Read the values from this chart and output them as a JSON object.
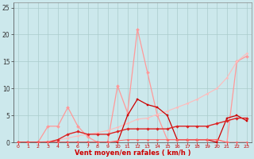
{
  "xlabel": "Vent moyen/en rafales ( km/h )",
  "bg_color": "#cce8ec",
  "grid_color": "#aacccc",
  "xlim": [
    -0.5,
    23.5
  ],
  "ylim": [
    0,
    26
  ],
  "yticks": [
    0,
    5,
    10,
    15,
    20,
    25
  ],
  "xticks": [
    0,
    1,
    2,
    3,
    4,
    5,
    6,
    7,
    8,
    9,
    10,
    11,
    12,
    13,
    14,
    15,
    16,
    17,
    18,
    19,
    20,
    21,
    22,
    23
  ],
  "series": [
    {
      "x": [
        0,
        1,
        2,
        3,
        4,
        5,
        6,
        7,
        8,
        9,
        10,
        11,
        12,
        13,
        14,
        15,
        16,
        17,
        18,
        19,
        20,
        21,
        22,
        23
      ],
      "y": [
        0,
        0,
        0,
        3,
        3,
        6.5,
        3,
        1,
        0,
        0,
        10.5,
        5.5,
        21,
        13,
        5,
        0.5,
        0.5,
        0.5,
        0.5,
        0.5,
        0.5,
        0,
        15,
        16
      ],
      "color": "#ff9999",
      "lw": 0.9,
      "marker": "D",
      "ms": 2.0
    },
    {
      "x": [
        0,
        1,
        2,
        3,
        4,
        5,
        6,
        7,
        8,
        9,
        10,
        11,
        12,
        13,
        14,
        15,
        16,
        17,
        18,
        19,
        20,
        21,
        22,
        23
      ],
      "y": [
        0,
        0,
        0,
        0.2,
        0.4,
        0.8,
        1.2,
        1.5,
        1.8,
        2.2,
        2.8,
        3.5,
        4.3,
        4.5,
        5.2,
        5.8,
        6.5,
        7.2,
        8.0,
        9.0,
        10.0,
        12.0,
        15.0,
        16.5
      ],
      "color": "#ffbbbb",
      "lw": 0.8,
      "marker": "D",
      "ms": 1.5
    },
    {
      "x": [
        0,
        1,
        2,
        3,
        4,
        5,
        6,
        7,
        8,
        9,
        10,
        11,
        12,
        13,
        14,
        15,
        16,
        17,
        18,
        19,
        20,
        21,
        22,
        23
      ],
      "y": [
        0,
        0,
        0,
        0,
        0,
        0,
        0,
        0,
        0,
        0,
        0,
        5,
        8,
        7,
        6.5,
        5,
        0.5,
        0.5,
        0.5,
        0.5,
        0,
        4.5,
        5,
        4
      ],
      "color": "#cc0000",
      "lw": 0.9,
      "marker": "s",
      "ms": 2.0
    },
    {
      "x": [
        0,
        1,
        2,
        3,
        4,
        5,
        6,
        7,
        8,
        9,
        10,
        11,
        12,
        13,
        14,
        15,
        16,
        17,
        18,
        19,
        20,
        21,
        22,
        23
      ],
      "y": [
        0,
        0,
        0,
        0,
        0.5,
        1.5,
        2,
        1.5,
        1.5,
        1.5,
        2,
        2.5,
        2.5,
        2.5,
        2.5,
        2.5,
        3,
        3,
        3,
        3,
        3.5,
        4,
        4.5,
        4.5
      ],
      "color": "#dd2222",
      "lw": 1.0,
      "marker": "D",
      "ms": 1.8
    },
    {
      "x": [
        0,
        1,
        2,
        3,
        4,
        5,
        6,
        7,
        8,
        9,
        10,
        11,
        12,
        13,
        14,
        15,
        16,
        17,
        18,
        19,
        20,
        21,
        22,
        23
      ],
      "y": [
        0,
        0,
        0,
        0,
        0,
        0,
        0,
        0,
        0,
        0,
        0.3,
        0.5,
        0.5,
        0.5,
        0.5,
        0.5,
        0.5,
        0.5,
        0.5,
        0.5,
        0.5,
        0,
        0,
        0
      ],
      "color": "#ff6666",
      "lw": 0.7,
      "marker": "D",
      "ms": 1.5
    }
  ]
}
